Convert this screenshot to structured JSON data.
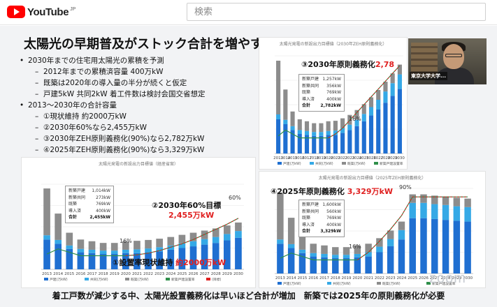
{
  "header": {
    "logo_text": "YouTube",
    "logo_region": "JP",
    "logo_icon": "youtube-play-icon",
    "search_placeholder": "検索"
  },
  "slide": {
    "title": "太陽光の早期普及がストック合計を増やす",
    "bullets": [
      {
        "level": 1,
        "text": "2030年までの住宅用太陽光の累積を予測"
      },
      {
        "level": 2,
        "text": "2012年までの累積済容量 400万kW"
      },
      {
        "level": 2,
        "text": "既築は2020年の導入量の半分が続くと仮定"
      },
      {
        "level": 2,
        "text": "戸建5kW 共同2kW 着工件数は検討会国交省想定"
      },
      {
        "level": 1,
        "text": "2013～2030年の合計容量"
      },
      {
        "level": 2,
        "text": "①現状維持 約2000万kW"
      },
      {
        "level": 2,
        "text": "②2030年60%なら2,455万kW"
      },
      {
        "level": 2,
        "text": "③2030年ZEH原則義務化(90%)なら2,782万kW"
      },
      {
        "level": 2,
        "text": "④2025年ZEH原則義務化(90%)なら3,329万kW"
      }
    ],
    "caption": "着工戸数が減少する中、太陽光設置義務化は早いほど合計が増加　新築では2025年の原則義務化が必要",
    "watermark": "zoom"
  },
  "webcam": {
    "name_label": "東京大学大学..."
  },
  "panels": {
    "p1": {
      "title": "太陽光発電の新設出力目標値（経産省案）",
      "label_main": "②2030年60%目標",
      "label_value": "2,455万kW",
      "label_bottom_prefix": "①設置率現状維持 ",
      "label_bottom_red": "約2000万kW",
      "pct_mid": "16%",
      "pct_end": "60%",
      "infobox": [
        {
          "k": "新築戸建",
          "v": "1,014kW"
        },
        {
          "k": "新築共同",
          "v": "273kW"
        },
        {
          "k": "既築",
          "v": "769kW"
        },
        {
          "k": "導入済",
          "v": "400kW"
        },
        {
          "k": "合計",
          "v": "2,455kW"
        }
      ]
    },
    "p2": {
      "title": "太陽光発電の新設出力目標値（2030年ZEH原則義務化）",
      "label_main": "③2030年原則義務化",
      "label_value": "2,78",
      "pct_mid": "16%",
      "infobox": [
        {
          "k": "新築戸建",
          "v": "1,257kW"
        },
        {
          "k": "新築共同",
          "v": "356kW"
        },
        {
          "k": "既築",
          "v": "769kW"
        },
        {
          "k": "導入済",
          "v": "400kW"
        },
        {
          "k": "合計",
          "v": "2,782kW"
        }
      ]
    },
    "p3": {
      "title": "太陽光発電の新設出力目標値（2025年ZEH原則義務化）",
      "label_main": "④2025年原則義務化 ",
      "label_value": "3,329万kW",
      "pct_mid": "16%",
      "pct_top": "90%",
      "infobox": [
        {
          "k": "新築戸建",
          "v": "1,600kW"
        },
        {
          "k": "新築共同",
          "v": "560kW"
        },
        {
          "k": "既築",
          "v": "769kW"
        },
        {
          "k": "導入済",
          "v": "400kW"
        },
        {
          "k": "合計",
          "v": "3,329kW"
        }
      ]
    }
  },
  "chart_data": [
    {
      "type": "bar",
      "title": "太陽光発電の新設出力目標値（経産省案）",
      "categories": [
        "2013",
        "2014",
        "2015",
        "2016",
        "2017",
        "2018",
        "2019",
        "2020",
        "2021",
        "2022",
        "2023",
        "2024",
        "2025",
        "2026",
        "2027",
        "2028",
        "2029",
        "2030"
      ],
      "series": [
        {
          "name": "戸建(万kW)",
          "values": [
            70,
            60,
            48,
            40,
            38,
            36,
            36,
            38,
            38,
            40,
            42,
            46,
            50,
            54,
            58,
            62,
            68,
            74
          ]
        },
        {
          "name": "共同(万kW)",
          "values": [
            10,
            9,
            8,
            8,
            8,
            8,
            8,
            8,
            9,
            9,
            10,
            10,
            11,
            12,
            13,
            14,
            15,
            16
          ]
        },
        {
          "name": "既築(万kW)",
          "values": [
            110,
            62,
            30,
            22,
            20,
            18,
            18,
            20,
            20,
            20,
            20,
            20,
            20,
            20,
            20,
            20,
            20,
            20
          ]
        }
      ],
      "rate": [
        18,
        24,
        20,
        16,
        16,
        16,
        16,
        16,
        17,
        19,
        22,
        26,
        30,
        35,
        41,
        47,
        53,
        60
      ],
      "ylim": [
        0,
        200
      ],
      "legend": [
        "戸建(万kW)",
        "共同(万kW)",
        "既築(万kW)",
        "新築戸建設置率",
        "(目標)"
      ]
    },
    {
      "type": "bar",
      "title": "太陽光発電の新設出力目標値（2030年ZEH原則義務化）",
      "categories": [
        "2013",
        "2014",
        "2015",
        "2016",
        "2017",
        "2018",
        "2019",
        "2020",
        "2021",
        "2022",
        "2023",
        "2024",
        "2025",
        "2026",
        "2027",
        "2028",
        "2029",
        "2030"
      ],
      "series": [
        {
          "name": "戸建(万kW)",
          "values": [
            70,
            60,
            48,
            40,
            38,
            36,
            36,
            38,
            38,
            42,
            48,
            56,
            66,
            78,
            90,
            104,
            118,
            132
          ]
        },
        {
          "name": "共同(万kW)",
          "values": [
            10,
            9,
            8,
            8,
            8,
            8,
            8,
            8,
            9,
            10,
            11,
            13,
            15,
            17,
            20,
            23,
            26,
            30
          ]
        },
        {
          "name": "既築(万kW)",
          "values": [
            110,
            62,
            30,
            22,
            20,
            18,
            18,
            20,
            20,
            20,
            20,
            20,
            20,
            20,
            20,
            20,
            20,
            20
          ]
        }
      ],
      "rate": [
        18,
        24,
        20,
        16,
        16,
        16,
        16,
        16,
        20,
        26,
        34,
        42,
        50,
        58,
        66,
        74,
        82,
        90
      ],
      "ylim": [
        0,
        200
      ],
      "legend": [
        "戸建(万kW)",
        "共同(万kW)",
        "既築(万kW)",
        "新築戸建設置率"
      ]
    },
    {
      "type": "bar",
      "title": "太陽光発電の新設出力目標値（2025年ZEH原則義務化）",
      "categories": [
        "2013",
        "2014",
        "2015",
        "2016",
        "2017",
        "2018",
        "2019",
        "2020",
        "2021",
        "2022",
        "2023",
        "2024",
        "2025",
        "2026",
        "2027",
        "2028",
        "2029",
        "2030"
      ],
      "series": [
        {
          "name": "戸建(万kW)",
          "values": [
            70,
            60,
            48,
            40,
            38,
            36,
            36,
            38,
            40,
            50,
            64,
            80,
            130,
            130,
            128,
            126,
            124,
            122
          ]
        },
        {
          "name": "共同(万kW)",
          "values": [
            10,
            9,
            8,
            8,
            8,
            8,
            8,
            8,
            10,
            13,
            17,
            22,
            36,
            36,
            35,
            35,
            34,
            34
          ]
        },
        {
          "name": "既築(万kW)",
          "values": [
            110,
            62,
            30,
            22,
            20,
            18,
            18,
            20,
            20,
            20,
            20,
            20,
            20,
            20,
            20,
            20,
            20,
            20
          ]
        }
      ],
      "rate": [
        18,
        24,
        20,
        16,
        16,
        16,
        16,
        16,
        25,
        38,
        52,
        68,
        90,
        90,
        90,
        90,
        90,
        90
      ],
      "ylim": [
        0,
        200
      ],
      "legend": [
        "戸建(万kW)",
        "共同(万kW)",
        "既築(万kW)",
        "新築戸建設置率"
      ]
    }
  ],
  "colors": {
    "detached": "#1f6fd1",
    "collective": "#35a9e6",
    "existing": "#8c8c8c",
    "rate_line": "#2f8f4a",
    "target_line": "#e02020"
  }
}
